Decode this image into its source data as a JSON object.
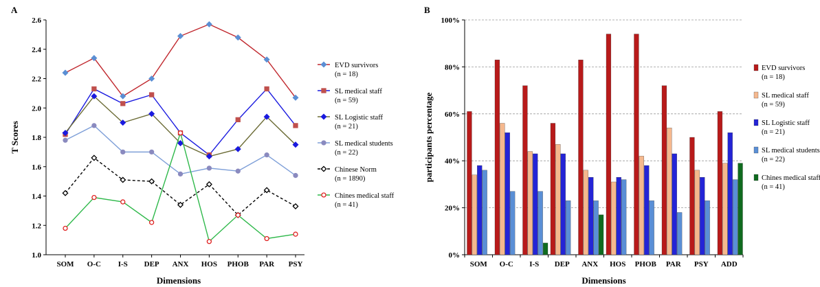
{
  "chart_data": [
    {
      "type": "line",
      "panel_label": "A",
      "xlabel": "Dimensions",
      "ylabel": "T Scores",
      "categories": [
        "SOM",
        "O-C",
        "I-S",
        "DEP",
        "ANX",
        "HOS",
        "PHOB",
        "PAR",
        "PSY"
      ],
      "ylim": [
        1.0,
        2.6
      ],
      "yticks": [
        "1.0",
        "1.2",
        "1.4",
        "1.6",
        "1.8",
        "2.0",
        "2.2",
        "2.4",
        "2.6"
      ],
      "grid": false,
      "legend_position": "right",
      "series": [
        {
          "name": "EVD survivors",
          "n": "(n = 18)",
          "color": "#c0272d",
          "marker": "diamond",
          "marker_fill": "#5b8fd4",
          "marker_stroke": "#5b8fd4",
          "dash": "",
          "values": [
            2.24,
            2.34,
            2.08,
            2.2,
            2.49,
            2.57,
            2.48,
            2.33,
            2.07
          ]
        },
        {
          "name": "SL medical staff",
          "n": "(n = 59)",
          "color": "#1a1adf",
          "marker": "square",
          "marker_fill": "#c0504d",
          "marker_stroke": "#c0504d",
          "dash": "",
          "values": [
            1.82,
            2.13,
            2.03,
            2.09,
            1.83,
            1.68,
            1.92,
            2.13,
            1.88
          ]
        },
        {
          "name": "SL Logistic staff",
          "n": "(n = 21)",
          "color": "#6b6b35",
          "marker": "diamond",
          "marker_fill": "#1a1adf",
          "marker_stroke": "#1a1adf",
          "dash": "",
          "values": [
            1.83,
            2.08,
            1.9,
            1.96,
            1.76,
            1.67,
            1.72,
            1.94,
            1.75
          ]
        },
        {
          "name": "SL medical students",
          "n": "(n = 22)",
          "color": "#7e9fd8",
          "marker": "circle",
          "marker_fill": "#8a8abf",
          "marker_stroke": "#8a8abf",
          "dash": "",
          "values": [
            1.78,
            1.88,
            1.7,
            1.7,
            1.55,
            1.59,
            1.57,
            1.68,
            1.54
          ]
        },
        {
          "name": "Chinese Norm",
          "n": "(n = 1890)",
          "color": "#000000",
          "marker": "diamond",
          "marker_fill": "#ffffff",
          "marker_stroke": "#000000",
          "dash": "4,3",
          "values": [
            1.42,
            1.66,
            1.51,
            1.5,
            1.34,
            1.48,
            1.27,
            1.44,
            1.33
          ]
        },
        {
          "name": "Chines medical staff",
          "n": "(n = 41)",
          "color": "#2eb84a",
          "marker": "circle",
          "marker_fill": "#ffffff",
          "marker_stroke": "#e02020",
          "dash": "",
          "values": [
            1.18,
            1.39,
            1.36,
            1.22,
            1.83,
            1.09,
            1.27,
            1.11,
            1.14
          ]
        }
      ]
    },
    {
      "type": "bar",
      "panel_label": "B",
      "xlabel": "Dimensions",
      "ylabel": "participants percentage",
      "categories": [
        "SOM",
        "O-C",
        "I-S",
        "DEP",
        "ANX",
        "HOS",
        "PHOB",
        "PAR",
        "PSY",
        "ADD"
      ],
      "ylim": [
        0,
        100
      ],
      "yticks": [
        "0%",
        "20%",
        "40%",
        "60%",
        "80%",
        "100%"
      ],
      "grid": true,
      "legend_position": "right",
      "series": [
        {
          "name": "EVD survivors",
          "n": "(n = 18)",
          "color": "#b81a1a",
          "values": [
            61,
            83,
            72,
            56,
            83,
            94,
            94,
            72,
            50,
            61
          ]
        },
        {
          "name": "SL medical staff",
          "n": "(n = 59)",
          "color": "#f5b88e",
          "values": [
            34,
            56,
            44,
            47,
            36,
            31,
            42,
            54,
            36,
            39
          ]
        },
        {
          "name": "SL Logistic staff",
          "n": "(n = 21)",
          "color": "#2424d6",
          "values": [
            38,
            52,
            43,
            43,
            33,
            33,
            38,
            43,
            33,
            52
          ]
        },
        {
          "name": "SL medical students",
          "n": "(n = 22)",
          "color": "#5a8fd6",
          "values": [
            36,
            27,
            27,
            23,
            23,
            32,
            23,
            18,
            23,
            32
          ]
        },
        {
          "name": "Chines medical staff",
          "n": "(n = 41)",
          "color": "#0f6b1f",
          "values": [
            0,
            0,
            5,
            0,
            17,
            0,
            0,
            0,
            0,
            39
          ]
        }
      ]
    }
  ]
}
